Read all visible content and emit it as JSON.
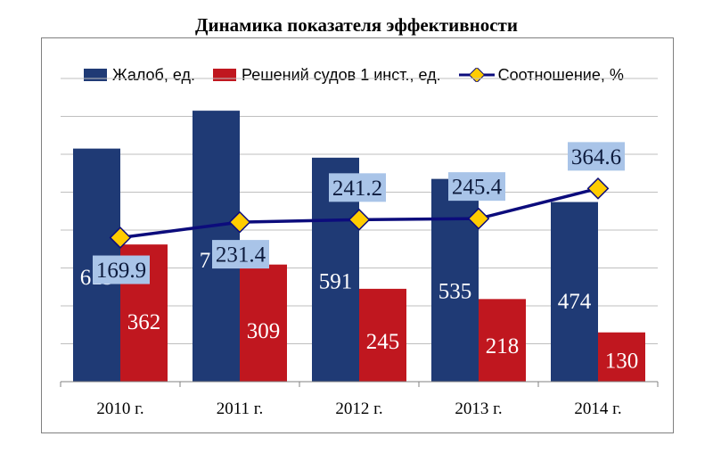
{
  "chart_data": {
    "type": "bar",
    "title": "Динамика показателя эффективности",
    "categories": [
      "2010 г.",
      "2011 г.",
      "2012 г.",
      "2013 г.",
      "2014 г."
    ],
    "series": [
      {
        "name": "Жалоб, ед.",
        "type": "bar",
        "color": "#1f3a75",
        "values": [
          615,
          715,
          591,
          535,
          474
        ]
      },
      {
        "name": "Решений судов 1 инст., ед.",
        "type": "bar",
        "color": "#c0171f",
        "values": [
          362,
          309,
          245,
          218,
          130
        ]
      },
      {
        "name": "Соотношение, %",
        "type": "line",
        "color": "#0c0c7c",
        "marker_color": "#ffcc00",
        "values": [
          169.9,
          231.4,
          241.2,
          245.4,
          364.6
        ]
      }
    ],
    "bar_axis": {
      "ylim": [
        0,
        800
      ],
      "step": 100
    },
    "line_axis": {
      "ylim": [
        -400,
        800
      ]
    },
    "grid": true,
    "legend": "top",
    "data_label_bg": "#a9c4e8"
  }
}
